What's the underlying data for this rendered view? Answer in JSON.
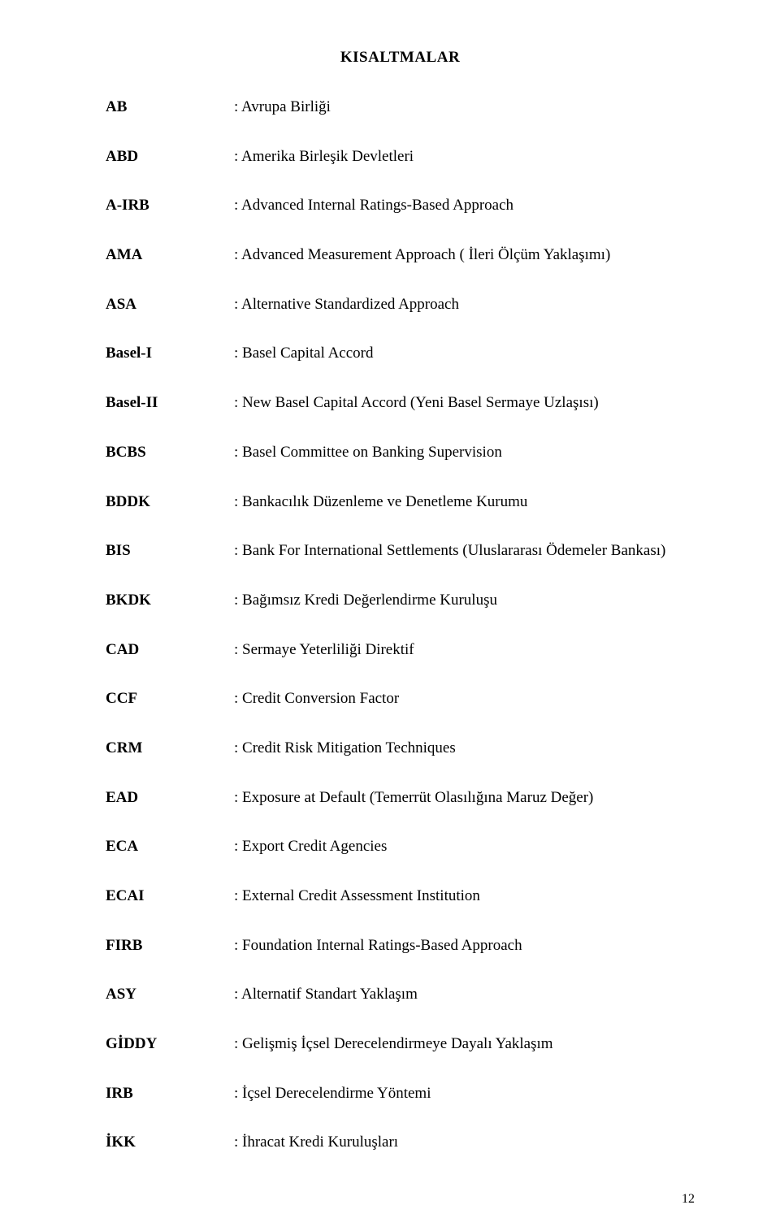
{
  "title": "KISALTMALAR",
  "entries": [
    {
      "abbr": "AB",
      "def": ": Avrupa Birliği"
    },
    {
      "abbr": "ABD",
      "def": ": Amerika Birleşik Devletleri"
    },
    {
      "abbr": "A-IRB",
      "def": ": Advanced Internal Ratings-Based Approach"
    },
    {
      "abbr": "AMA",
      "def": ": Advanced Measurement Approach ( İleri Ölçüm Yaklaşımı)"
    },
    {
      "abbr": "ASA",
      "def": ": Alternative Standardized Approach"
    },
    {
      "abbr": "Basel-I",
      "def": ": Basel Capital Accord"
    },
    {
      "abbr": "Basel-II",
      "def": ": New Basel Capital Accord (Yeni Basel Sermaye Uzlaşısı)"
    },
    {
      "abbr": "BCBS",
      "def": ": Basel Committee on Banking Supervision"
    },
    {
      "abbr": "BDDK",
      "def": ": Bankacılık Düzenleme ve Denetleme Kurumu"
    },
    {
      "abbr": "BIS",
      "def": ": Bank For International Settlements (Uluslararası Ödemeler Bankası)"
    },
    {
      "abbr": "BKDK",
      "def": ": Bağımsız Kredi Değerlendirme Kuruluşu"
    },
    {
      "abbr": "CAD",
      "def": ": Sermaye Yeterliliği Direktif"
    },
    {
      "abbr": "CCF",
      "def": ": Credit Conversion Factor"
    },
    {
      "abbr": "CRM",
      "def": ": Credit Risk Mitigation Techniques"
    },
    {
      "abbr": "EAD",
      "def": ": Exposure at Default (Temerrüt Olasılığına Maruz Değer)"
    },
    {
      "abbr": "ECA",
      "def": ": Export Credit Agencies"
    },
    {
      "abbr": "ECAI",
      "def": ": External Credit Assessment Institution"
    },
    {
      "abbr": "FIRB",
      "def": ": Foundation Internal Ratings-Based Approach"
    },
    {
      "abbr": "ASY",
      "def": ": Alternatif Standart Yaklaşım"
    },
    {
      "abbr": "GİDDY",
      "def": ": Gelişmiş İçsel Derecelendirmeye Dayalı Yaklaşım"
    },
    {
      "abbr": "IRB",
      "def": ": İçsel Derecelendirme Yöntemi"
    },
    {
      "abbr": "İKK",
      "def": ": İhracat Kredi Kuruluşları"
    }
  ],
  "pageNumber": "12",
  "colors": {
    "text": "#000000",
    "background": "#ffffff"
  },
  "typography": {
    "font_family": "Times New Roman",
    "title_fontsize": 19,
    "body_fontsize": 19,
    "page_num_fontsize": 16
  }
}
